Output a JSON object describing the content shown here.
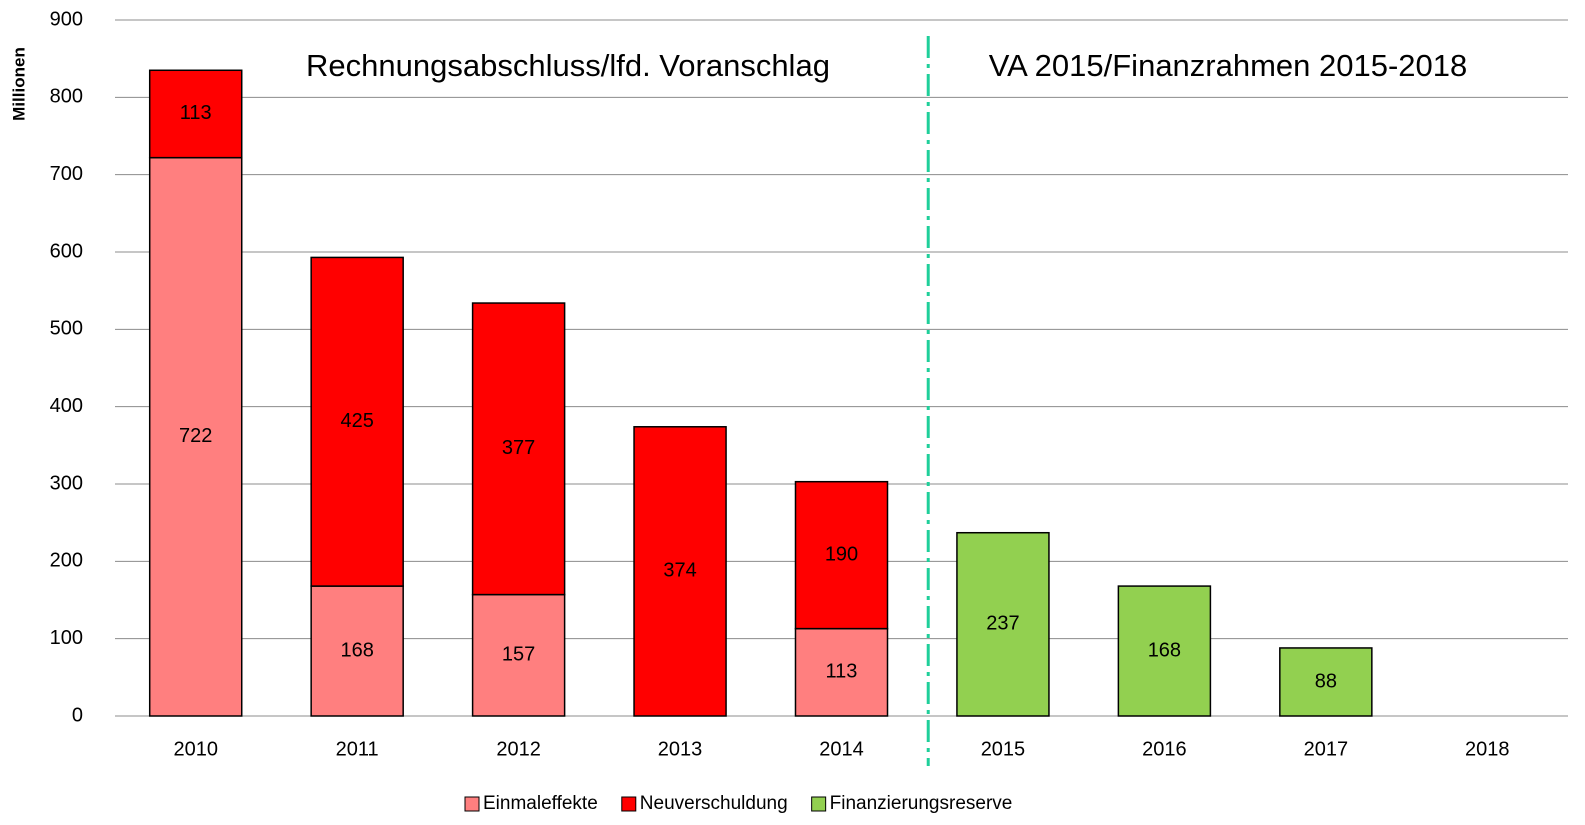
{
  "chart_data": {
    "type": "stacked_bar",
    "y_label": "Millionen",
    "annotations": [
      "Rechnungsabschluss/lfd. Voranschlag",
      "VA 2015/Finanzrahmen 2015-2018"
    ],
    "categories": [
      "2010",
      "2011",
      "2012",
      "2013",
      "2014",
      "2015",
      "2016",
      "2017",
      "2018"
    ],
    "series": [
      {
        "name": "Einmaleffekte",
        "color": "#ff7f7f",
        "values": [
          722,
          168,
          157,
          null,
          113,
          null,
          null,
          null,
          null
        ]
      },
      {
        "name": "Neuverschuldung",
        "color": "#ff0000",
        "values": [
          113,
          425,
          377,
          374,
          190,
          null,
          null,
          null,
          null
        ]
      },
      {
        "name": "Finanzierungsreserve",
        "color": "#92d050",
        "values": [
          null,
          null,
          null,
          null,
          null,
          237,
          168,
          88,
          null
        ]
      }
    ],
    "ylim": [
      0,
      900
    ],
    "yticks": [
      0,
      100,
      200,
      300,
      400,
      500,
      600,
      700,
      800,
      900
    ],
    "grid": true
  }
}
